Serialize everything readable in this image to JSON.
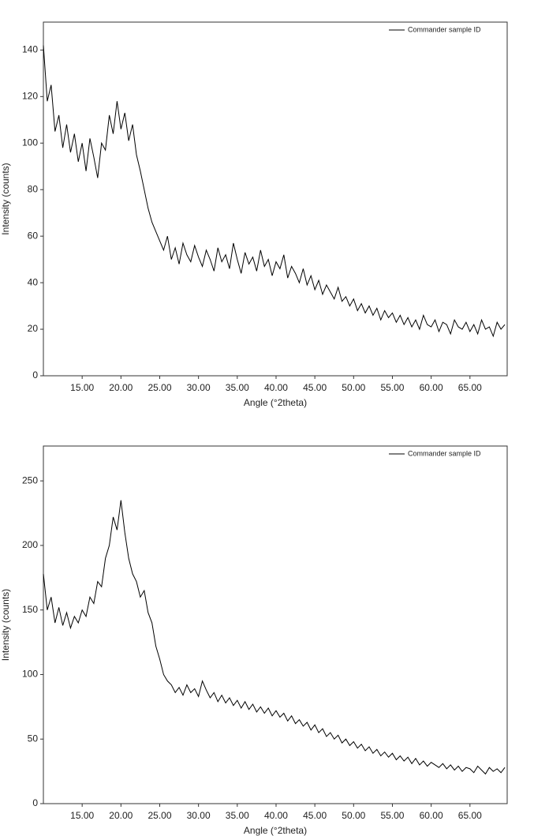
{
  "chart_data": [
    {
      "type": "line",
      "x_label": "Angle (°2theta)",
      "y_label": "Intensity (counts)",
      "legend": "upper right",
      "xlim": [
        10,
        69.8
      ],
      "ylim": [
        0,
        152
      ],
      "xticks": [
        {
          "value": 15,
          "label": "15.00"
        },
        {
          "value": 20,
          "label": "20.00"
        },
        {
          "value": 25,
          "label": "25.00"
        },
        {
          "value": 30,
          "label": "30.00"
        },
        {
          "value": 35,
          "label": "35.00"
        },
        {
          "value": 40,
          "label": "40.00"
        },
        {
          "value": 45,
          "label": "45.00"
        },
        {
          "value": 50,
          "label": "50.00"
        },
        {
          "value": 55,
          "label": "55.00"
        },
        {
          "value": 60,
          "label": "60.00"
        },
        {
          "value": 65,
          "label": "65.00"
        }
      ],
      "yticks": [
        0,
        20,
        40,
        60,
        80,
        100,
        120,
        140
      ],
      "x": [
        10,
        10.5,
        11,
        11.5,
        12,
        12.5,
        13,
        13.5,
        14,
        14.5,
        15,
        15.5,
        16,
        16.5,
        17,
        17.5,
        18,
        18.5,
        19,
        19.5,
        20,
        20.5,
        21,
        21.5,
        22,
        22.5,
        23,
        23.5,
        24,
        24.5,
        25,
        25.5,
        26,
        26.5,
        27,
        27.5,
        28,
        28.5,
        29,
        29.5,
        30,
        30.5,
        31,
        31.5,
        32,
        32.5,
        33,
        33.5,
        34,
        34.5,
        35,
        35.5,
        36,
        36.5,
        37,
        37.5,
        38,
        38.5,
        39,
        39.5,
        40,
        40.5,
        41,
        41.5,
        42,
        42.5,
        43,
        43.5,
        44,
        44.5,
        45,
        45.5,
        46,
        46.5,
        47,
        47.5,
        48,
        48.5,
        49,
        49.5,
        50,
        50.5,
        51,
        51.5,
        52,
        52.5,
        53,
        53.5,
        54,
        54.5,
        55,
        55.5,
        56,
        56.5,
        57,
        57.5,
        58,
        58.5,
        59,
        59.5,
        60,
        60.5,
        61,
        61.5,
        62,
        62.5,
        63,
        63.5,
        64,
        64.5,
        65,
        65.5,
        66,
        66.5,
        67,
        67.5,
        68,
        68.5,
        69,
        69.5
      ],
      "series": [
        {
          "name": "Commander sample ID",
          "color": "#000000",
          "values": [
            142,
            118,
            125,
            105,
            112,
            98,
            108,
            96,
            104,
            92,
            100,
            88,
            102,
            94,
            85,
            100,
            97,
            112,
            104,
            118,
            106,
            113,
            101,
            108,
            95,
            88,
            80,
            72,
            66,
            62,
            58,
            54,
            60,
            50,
            55,
            48,
            57,
            52,
            49,
            56,
            51,
            47,
            54,
            50,
            45,
            55,
            49,
            52,
            46,
            57,
            50,
            44,
            53,
            48,
            51,
            45,
            54,
            47,
            50,
            43,
            49,
            46,
            52,
            42,
            47,
            44,
            40,
            46,
            39,
            43,
            37,
            41,
            35,
            39,
            36,
            33,
            38,
            32,
            34,
            30,
            33,
            28,
            31,
            27,
            30,
            26,
            29,
            24,
            28,
            25,
            27,
            23,
            26,
            22,
            25,
            21,
            24,
            20,
            26,
            22,
            21,
            24,
            19,
            23,
            22,
            18,
            24,
            21,
            20,
            23,
            19,
            22,
            18,
            24,
            20,
            21,
            17,
            23,
            20,
            22
          ]
        }
      ]
    },
    {
      "type": "line",
      "x_label": "Angle (°2theta)",
      "y_label": "Intensity (counts)",
      "legend": "upper right",
      "xlim": [
        10,
        69.8
      ],
      "ylim": [
        0,
        277
      ],
      "xticks": [
        {
          "value": 15,
          "label": "15.00"
        },
        {
          "value": 20,
          "label": "20.00"
        },
        {
          "value": 25,
          "label": "25.00"
        },
        {
          "value": 30,
          "label": "30.00"
        },
        {
          "value": 35,
          "label": "35.00"
        },
        {
          "value": 40,
          "label": "40.00"
        },
        {
          "value": 45,
          "label": "45.00"
        },
        {
          "value": 50,
          "label": "50.00"
        },
        {
          "value": 55,
          "label": "55.00"
        },
        {
          "value": 60,
          "label": "60.00"
        },
        {
          "value": 65,
          "label": "65.00"
        }
      ],
      "yticks": [
        0,
        50,
        100,
        150,
        200,
        250
      ],
      "x": [
        10,
        10.5,
        11,
        11.5,
        12,
        12.5,
        13,
        13.5,
        14,
        14.5,
        15,
        15.5,
        16,
        16.5,
        17,
        17.5,
        18,
        18.5,
        19,
        19.5,
        20,
        20.5,
        21,
        21.5,
        22,
        22.5,
        23,
        23.5,
        24,
        24.5,
        25,
        25.5,
        26,
        26.5,
        27,
        27.5,
        28,
        28.5,
        29,
        29.5,
        30,
        30.5,
        31,
        31.5,
        32,
        32.5,
        33,
        33.5,
        34,
        34.5,
        35,
        35.5,
        36,
        36.5,
        37,
        37.5,
        38,
        38.5,
        39,
        39.5,
        40,
        40.5,
        41,
        41.5,
        42,
        42.5,
        43,
        43.5,
        44,
        44.5,
        45,
        45.5,
        46,
        46.5,
        47,
        47.5,
        48,
        48.5,
        49,
        49.5,
        50,
        50.5,
        51,
        51.5,
        52,
        52.5,
        53,
        53.5,
        54,
        54.5,
        55,
        55.5,
        56,
        56.5,
        57,
        57.5,
        58,
        58.5,
        59,
        59.5,
        60,
        60.5,
        61,
        61.5,
        62,
        62.5,
        63,
        63.5,
        64,
        64.5,
        65,
        65.5,
        66,
        66.5,
        67,
        67.5,
        68,
        68.5,
        69,
        69.5
      ],
      "series": [
        {
          "name": "Commander sample ID",
          "color": "#000000",
          "values": [
            178,
            150,
            160,
            140,
            152,
            138,
            148,
            136,
            145,
            140,
            150,
            145,
            160,
            155,
            172,
            168,
            190,
            200,
            222,
            212,
            235,
            210,
            190,
            178,
            172,
            160,
            165,
            148,
            140,
            122,
            112,
            100,
            95,
            92,
            86,
            90,
            84,
            92,
            86,
            89,
            83,
            95,
            88,
            82,
            86,
            79,
            84,
            78,
            82,
            76,
            80,
            74,
            79,
            73,
            77,
            71,
            75,
            70,
            74,
            68,
            72,
            67,
            70,
            64,
            68,
            62,
            65,
            60,
            63,
            57,
            61,
            55,
            58,
            52,
            55,
            50,
            53,
            47,
            50,
            45,
            48,
            43,
            46,
            41,
            44,
            39,
            42,
            37,
            40,
            36,
            39,
            34,
            37,
            33,
            36,
            31,
            35,
            30,
            33,
            29,
            32,
            30,
            28,
            31,
            27,
            30,
            26,
            29,
            25,
            28,
            27,
            24,
            29,
            26,
            23,
            28,
            25,
            27,
            24,
            28
          ]
        }
      ]
    }
  ]
}
